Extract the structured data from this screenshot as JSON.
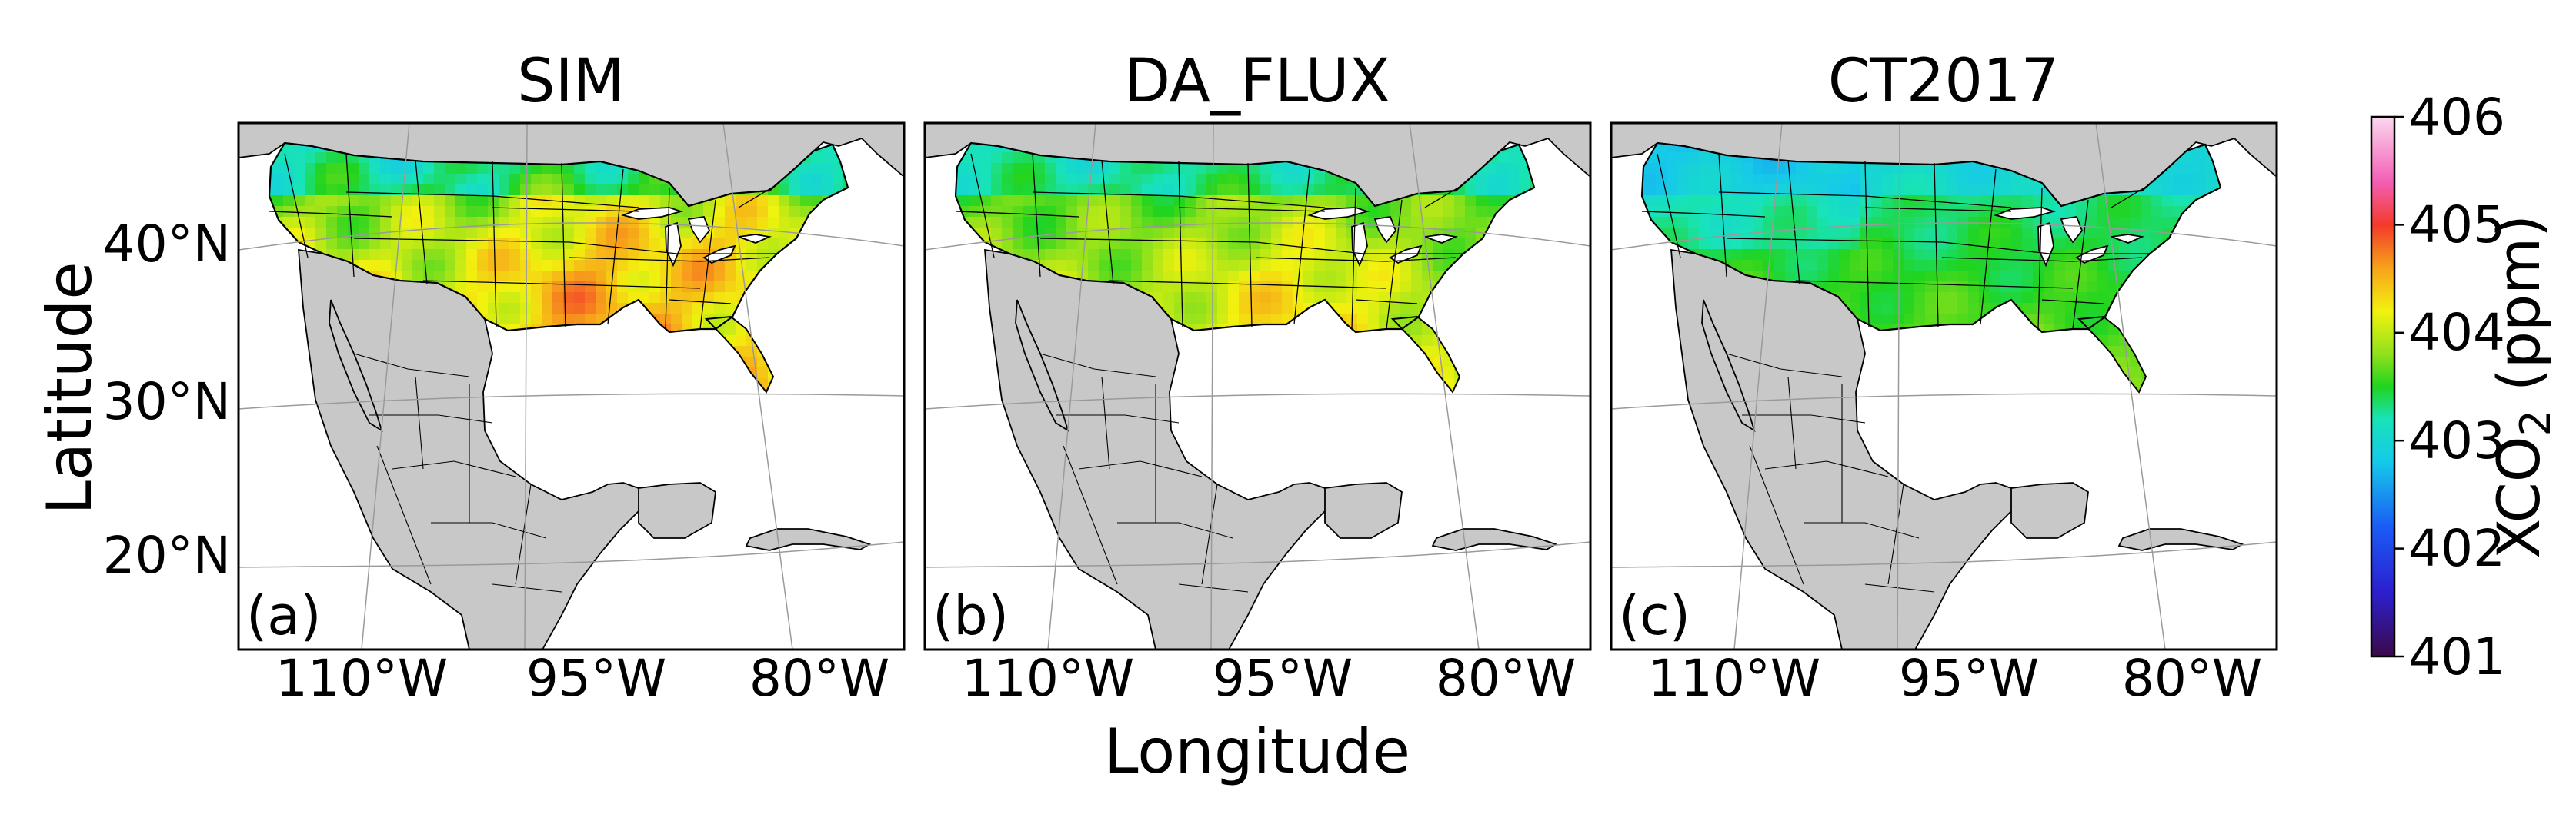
{
  "figure": {
    "panels": [
      {
        "title": "SIM",
        "label": "(a)",
        "scheme": "sim"
      },
      {
        "title": "DA_FLUX",
        "label": "(b)",
        "scheme": "da"
      },
      {
        "title": "CT2017",
        "label": "(c)",
        "scheme": "ct"
      }
    ],
    "y_axis_label": "Latitude",
    "x_axis_label": "Longitude",
    "lat_ticks": [
      "40°N",
      "30°N",
      "20°N"
    ],
    "lon_ticks": [
      "110°W",
      "95°W",
      "80°W"
    ],
    "colorbar": {
      "label_main": "XCO",
      "label_sub": "2",
      "label_unit": " (ppm)",
      "min": 401,
      "max": 406,
      "tick_labels": [
        "406",
        "405",
        "404",
        "403",
        "402",
        "401"
      ],
      "stops": [
        {
          "value": 401.0,
          "color": "#3b0a48"
        },
        {
          "value": 401.6,
          "color": "#2c1fd0"
        },
        {
          "value": 402.2,
          "color": "#1a5cf5"
        },
        {
          "value": 402.8,
          "color": "#16c9ea"
        },
        {
          "value": 403.2,
          "color": "#18e3b8"
        },
        {
          "value": 403.5,
          "color": "#20d41f"
        },
        {
          "value": 403.8,
          "color": "#8fe11b"
        },
        {
          "value": 404.2,
          "color": "#f2f20f"
        },
        {
          "value": 404.6,
          "color": "#f7a21a"
        },
        {
          "value": 405.0,
          "color": "#f33a2a"
        },
        {
          "value": 405.4,
          "color": "#f35fb5"
        },
        {
          "value": 406.0,
          "color": "#fbd8ef"
        }
      ]
    },
    "colors": {
      "land_outside": "#c8c8c8",
      "ocean": "#ffffff",
      "borders": "#000000",
      "graticule": "#9a9a9a"
    }
  }
}
